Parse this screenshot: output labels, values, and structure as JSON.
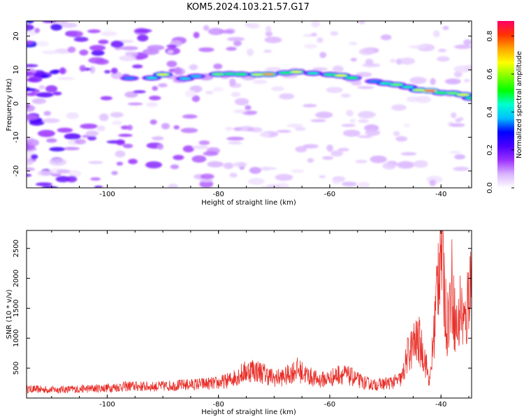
{
  "title": "KOM5.2024.103.21.57.G17",
  "chart_data": [
    {
      "type": "heatmap",
      "xlabel": "Height of straight line (km)",
      "ylabel": "Frequency (Hz)",
      "xlim": [
        -114.5,
        -34.5
      ],
      "ylim": [
        -25,
        24.5
      ],
      "x_ticks": [
        "-100",
        "-80",
        "-60",
        "-40"
      ],
      "y_ticks": [
        "20",
        "10",
        "0",
        "-10",
        "-20"
      ],
      "colorbar": {
        "label": "Normalized spectral amplitude",
        "range": [
          0.0,
          0.88
        ],
        "ticks": [
          "0.0",
          "0.2",
          "0.4",
          "0.6",
          "0.8"
        ],
        "colors": [
          "#ffffff",
          "#d9b3ff",
          "#9b30ff",
          "#4b00ff",
          "#0000ff",
          "#00bfff",
          "#00ffd0",
          "#00ff00",
          "#7fff00",
          "#ffff00",
          "#ffa500",
          "#ff3300",
          "#ff0066"
        ]
      },
      "ridge": [
        {
          "x": -96,
          "y": 7.5,
          "amp": 0.32
        },
        {
          "x": -92,
          "y": 7.6,
          "amp": 0.4
        },
        {
          "x": -90,
          "y": 8.6,
          "amp": 0.62
        },
        {
          "x": -86,
          "y": 7.4,
          "amp": 0.38
        },
        {
          "x": -84,
          "y": 8.1,
          "amp": 0.36
        },
        {
          "x": -80,
          "y": 8.7,
          "amp": 0.55
        },
        {
          "x": -78,
          "y": 8.8,
          "amp": 0.45
        },
        {
          "x": -76,
          "y": 8.7,
          "amp": 0.5
        },
        {
          "x": -73,
          "y": 8.6,
          "amp": 0.6
        },
        {
          "x": -71,
          "y": 8.7,
          "amp": 0.72
        },
        {
          "x": -68,
          "y": 9.1,
          "amp": 0.48
        },
        {
          "x": -66,
          "y": 9.4,
          "amp": 0.62
        },
        {
          "x": -63,
          "y": 9.0,
          "amp": 0.42
        },
        {
          "x": -60,
          "y": 8.6,
          "amp": 0.45
        },
        {
          "x": -58,
          "y": 8.3,
          "amp": 0.62
        },
        {
          "x": -56,
          "y": 7.6,
          "amp": 0.48
        },
        {
          "x": -52,
          "y": 6.6,
          "amp": 0.32
        },
        {
          "x": -50,
          "y": 6.0,
          "amp": 0.42
        },
        {
          "x": -48,
          "y": 5.6,
          "amp": 0.55
        },
        {
          "x": -46,
          "y": 4.9,
          "amp": 0.42
        },
        {
          "x": -44,
          "y": 4.0,
          "amp": 0.6
        },
        {
          "x": -42,
          "y": 3.8,
          "amp": 0.86
        },
        {
          "x": -40,
          "y": 3.2,
          "amp": 0.5
        },
        {
          "x": -38,
          "y": 3.1,
          "amp": 0.55
        },
        {
          "x": -36,
          "y": 2.6,
          "amp": 0.62
        },
        {
          "x": -34.5,
          "y": 1.6,
          "amp": 0.45
        }
      ]
    },
    {
      "type": "line",
      "xlabel": "Height of straight line (km)",
      "ylabel": "SNR (10 * v/v)",
      "xlim": [
        -114.5,
        -34.5
      ],
      "ylim": [
        0,
        2800
      ],
      "x_ticks": [
        "-100",
        "-80",
        "-60",
        "-40"
      ],
      "y_ticks": [
        "500",
        "1000",
        "1500",
        "2000",
        "2500"
      ],
      "color": "#e8302a",
      "series": [
        {
          "values_x": [
            -114.5,
            -110,
            -105,
            -100,
            -96,
            -92,
            -88,
            -84,
            -80,
            -78,
            -76,
            -74,
            -72,
            -70,
            -68,
            -66,
            -64,
            -62,
            -60,
            -58,
            -56,
            -54,
            -52,
            -50,
            -48,
            -47,
            -46,
            -45,
            -44,
            -43,
            -42,
            -41.5,
            -41,
            -40.5,
            -40,
            -39.5,
            -39,
            -38.5,
            -38,
            -37.5,
            -37,
            -36.5,
            -36,
            -35.5,
            -35,
            -34.5
          ],
          "values": [
            150,
            140,
            150,
            170,
            200,
            190,
            210,
            230,
            250,
            300,
            400,
            480,
            420,
            330,
            360,
            480,
            380,
            300,
            330,
            410,
            350,
            260,
            220,
            240,
            280,
            330,
            720,
            880,
            960,
            700,
            250,
            820,
            1400,
            2200,
            2750,
            2000,
            1200,
            1500,
            1900,
            1300,
            1100,
            1550,
            1300,
            1200,
            1900,
            2000
          ]
        }
      ]
    }
  ]
}
